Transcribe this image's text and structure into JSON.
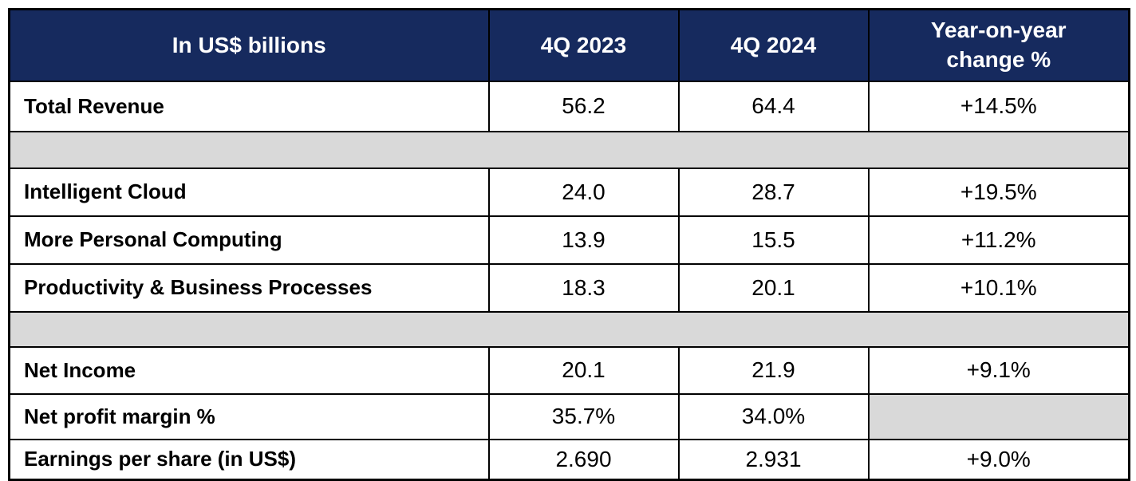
{
  "colors": {
    "header_bg": "#162A5E",
    "header_text": "#FFFFFF",
    "spacer_bg": "#D9D9D9",
    "border": "#000000",
    "body_text": "#000000",
    "row_bg": "#FFFFFF"
  },
  "chart_data": {
    "type": "table",
    "title": "In US$ billions",
    "columns": [
      "In US$ billions",
      "4Q 2023",
      "4Q 2024",
      "Year-on-year change %"
    ],
    "rows": [
      [
        "Total Revenue",
        "56.2",
        "64.4",
        "+14.5%"
      ],
      [
        "Intelligent Cloud",
        "24.0",
        "28.7",
        "+19.5%"
      ],
      [
        "More Personal Computing",
        "13.9",
        "15.5",
        "+11.2%"
      ],
      [
        "Productivity & Business Processes",
        "18.3",
        "20.1",
        "+10.1%"
      ],
      [
        "Net Income",
        "20.1",
        "21.9",
        "+9.1%"
      ],
      [
        "Net profit margin %",
        "35.7%",
        "34.0%",
        ""
      ],
      [
        "Earnings per share (in US$)",
        "2.690",
        "2.931",
        "+9.0%"
      ]
    ],
    "series": [
      {
        "name": "4Q 2023",
        "values": [
          56.2,
          24.0,
          13.9,
          18.3,
          20.1,
          35.7,
          2.69
        ]
      },
      {
        "name": "4Q 2024",
        "values": [
          64.4,
          28.7,
          15.5,
          20.1,
          21.9,
          34.0,
          2.931
        ]
      },
      {
        "name": "Year-on-year change %",
        "values": [
          14.5,
          19.5,
          11.2,
          10.1,
          9.1,
          null,
          9.0
        ]
      }
    ],
    "layout": {
      "gray_spacer_bands_after_rows": [
        "Total Revenue",
        "Productivity & Business Processes"
      ],
      "empty_gray_cell": {
        "row": "Net profit margin %",
        "column": "Year-on-year change %"
      },
      "grid": "black solid borders, thick outer frame"
    }
  }
}
